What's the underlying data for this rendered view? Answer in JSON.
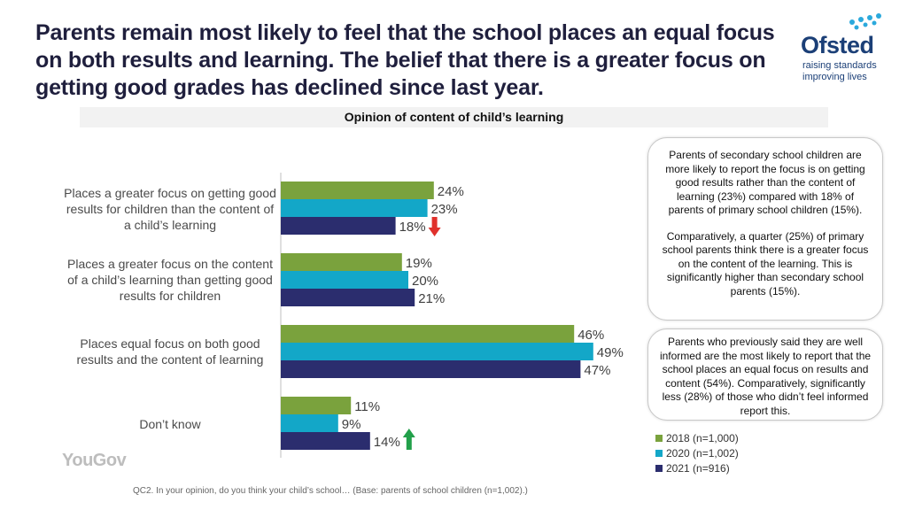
{
  "title": "Parents remain most likely to feel that the school places an equal focus on both results and learning. The belief that there is a greater focus on getting good grades has declined since last year.",
  "logo": {
    "name": "Ofsted",
    "line1": "raising standards",
    "line2": "improving lives"
  },
  "subtitle": "Opinion of content of child’s learning",
  "chart_data": {
    "type": "bar",
    "orientation": "horizontal",
    "title": "Opinion of content of child’s learning",
    "categories": [
      "Places a greater focus on getting good results for children than the content of a child’s learning",
      "Places a greater focus on the content of a child’s learning than getting good results for children",
      "Places equal focus on both good results and the content of learning",
      "Don’t know"
    ],
    "series": [
      {
        "name": "2018 (n=1,000)",
        "color": "#7aa23d",
        "values": [
          24,
          19,
          46,
          11
        ]
      },
      {
        "name": "2020 (n=1,002)",
        "color": "#13a7c8",
        "values": [
          23,
          20,
          49,
          9
        ]
      },
      {
        "name": "2021  (n=916)",
        "color": "#2b2d6e",
        "values": [
          18,
          21,
          47,
          14
        ]
      }
    ],
    "xlim": [
      0,
      55
    ],
    "value_suffix": "%",
    "annotations": [
      {
        "category": 0,
        "series": 2,
        "type": "arrow-down",
        "color": "#e0312c"
      },
      {
        "category": 3,
        "series": 2,
        "type": "arrow-up",
        "color": "#22a04a"
      }
    ],
    "legend_position": "bottom-right"
  },
  "callouts": [
    {
      "paragraphs": [
        "Parents of secondary school children are more likely to report the focus is on getting good results rather than the content of learning (23%) compared with 18% of parents of primary school children (15%).",
        "Comparatively, a quarter (25%) of primary school parents think there is a greater focus on the content of the learning. This is significantly higher than secondary school parents (15%)."
      ]
    },
    {
      "paragraphs": [
        "Parents who previously said they are well informed are the most likely to report that the school places an equal focus on results and content (54%). Comparatively, significantly less (28%) of those who didn’t feel informed report this."
      ]
    }
  ],
  "branding": "YouGov",
  "footnote": "QC2. In your opinion, do you think your child’s school… (Base: parents of school children (n=1,002).)"
}
